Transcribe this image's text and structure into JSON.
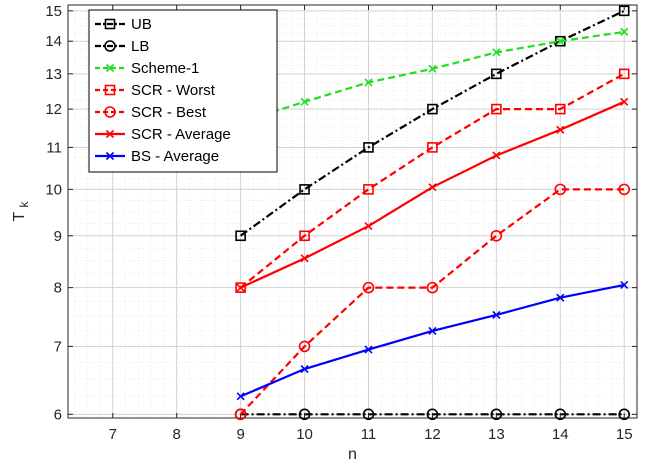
{
  "chart_data": {
    "type": "line",
    "title": "",
    "xlabel": "n",
    "ylabel": "T",
    "ylabel_subscript": "k",
    "xlim": [
      6.3,
      15.2
    ],
    "ylim": [
      5.95,
      15.2
    ],
    "yscale": "log",
    "grid": true,
    "legend_position": "top-left",
    "x_ticks": [
      7,
      8,
      9,
      10,
      11,
      12,
      13,
      14,
      15
    ],
    "y_ticks": [
      6,
      7,
      8,
      9,
      10,
      11,
      12,
      13,
      14,
      15
    ],
    "series": [
      {
        "name": "UB",
        "color": "#000000",
        "line": "dashdot",
        "marker": "square",
        "x": [
          9,
          10,
          11,
          12,
          13,
          14,
          15
        ],
        "y": [
          9,
          10,
          11,
          12,
          13,
          14,
          15
        ]
      },
      {
        "name": "LB",
        "color": "#000000",
        "line": "dashdot",
        "marker": "circle",
        "x": [
          9,
          10,
          11,
          12,
          13,
          14,
          15
        ],
        "y": [
          6,
          6,
          6,
          6,
          6,
          6,
          6
        ]
      },
      {
        "name": "Scheme-1",
        "color": "#22dd22",
        "line": "dashed",
        "marker": "x",
        "x": [
          9,
          10,
          11,
          12,
          13,
          14,
          15
        ],
        "y": [
          11.65,
          12.2,
          12.75,
          13.15,
          13.65,
          14.0,
          14.3
        ]
      },
      {
        "name": "SCR - Worst",
        "color": "#ff0000",
        "line": "dashed",
        "marker": "square",
        "x": [
          9,
          10,
          11,
          12,
          13,
          14,
          15
        ],
        "y": [
          8,
          9,
          10,
          11,
          12,
          12,
          13
        ]
      },
      {
        "name": "SCR - Best",
        "color": "#ff0000",
        "line": "dashed",
        "marker": "circle",
        "x": [
          9,
          10,
          11,
          12,
          13,
          14,
          15
        ],
        "y": [
          6,
          7,
          8,
          8,
          9,
          10,
          10
        ]
      },
      {
        "name": "SCR - Average",
        "color": "#ff0000",
        "line": "solid",
        "marker": "x",
        "x": [
          9,
          10,
          11,
          12,
          13,
          14,
          15
        ],
        "y": [
          8.0,
          8.55,
          9.2,
          10.05,
          10.8,
          11.45,
          12.2
        ]
      },
      {
        "name": "BS - Average",
        "color": "#0000ff",
        "line": "solid",
        "marker": "x",
        "x": [
          9,
          10,
          11,
          12,
          13,
          14,
          15
        ],
        "y": [
          6.25,
          6.65,
          6.95,
          7.25,
          7.52,
          7.82,
          8.05
        ]
      }
    ]
  }
}
